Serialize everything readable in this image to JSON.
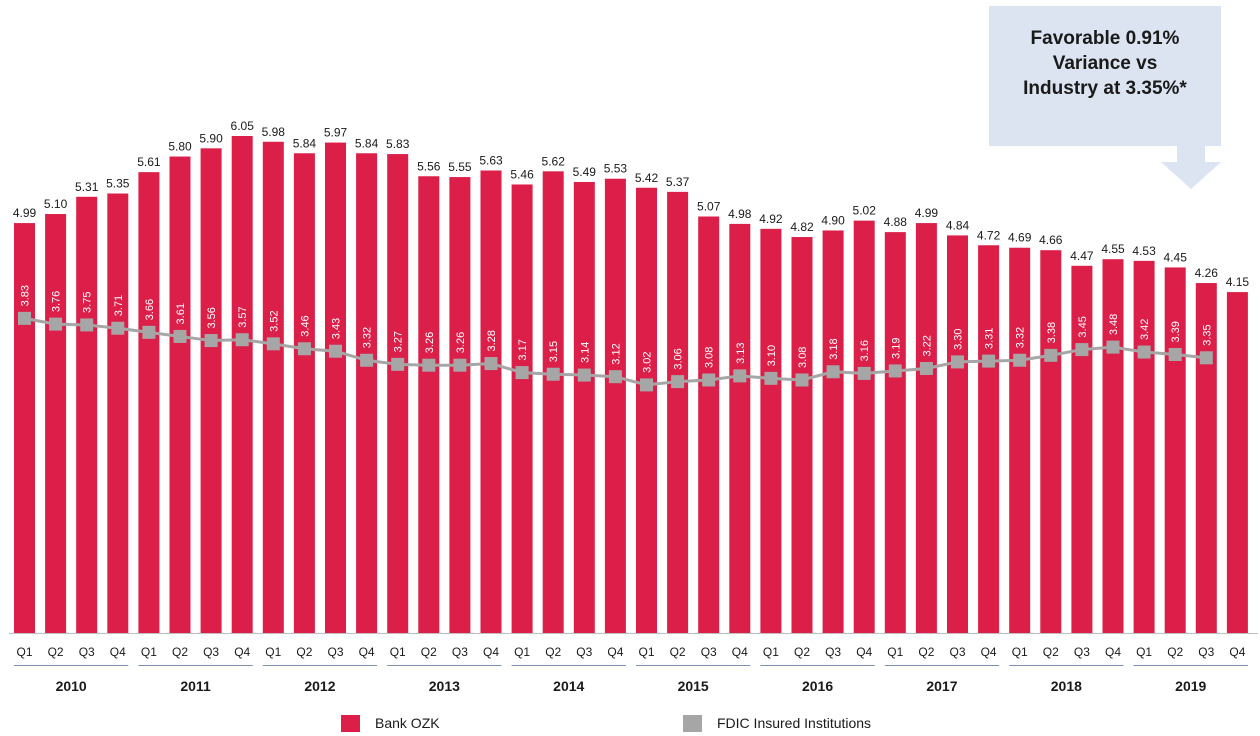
{
  "chart_data": {
    "type": "bar",
    "categories": [
      "Q1",
      "Q2",
      "Q3",
      "Q4",
      "Q1",
      "Q2",
      "Q3",
      "Q4",
      "Q1",
      "Q2",
      "Q3",
      "Q4",
      "Q1",
      "Q2",
      "Q3",
      "Q4",
      "Q1",
      "Q2",
      "Q3",
      "Q4",
      "Q1",
      "Q2",
      "Q3",
      "Q4",
      "Q1",
      "Q2",
      "Q3",
      "Q4",
      "Q1",
      "Q2",
      "Q3",
      "Q4",
      "Q1",
      "Q2",
      "Q3",
      "Q4",
      "Q1",
      "Q2",
      "Q3",
      "Q4"
    ],
    "years": [
      "2010",
      "2011",
      "2012",
      "2013",
      "2014",
      "2015",
      "2016",
      "2017",
      "2018",
      "2019"
    ],
    "series": [
      {
        "name": "Bank OZK",
        "type": "bar",
        "color": "#db1f48",
        "values": [
          4.99,
          5.1,
          5.31,
          5.35,
          5.61,
          5.8,
          5.9,
          6.05,
          5.98,
          5.84,
          5.97,
          5.84,
          5.83,
          5.56,
          5.55,
          5.63,
          5.46,
          5.62,
          5.49,
          5.53,
          5.42,
          5.37,
          5.07,
          4.98,
          4.92,
          4.82,
          4.9,
          5.02,
          4.88,
          4.99,
          4.84,
          4.72,
          4.69,
          4.66,
          4.47,
          4.55,
          4.53,
          4.45,
          4.26,
          4.15
        ],
        "labels": [
          "4.99",
          "5.10",
          "5.31",
          "5.35",
          "5.61",
          "5.80",
          "5.90",
          "6.05",
          "5.98",
          "5.84",
          "5.97",
          "5.84",
          "5.83",
          "5.56",
          "5.55",
          "5.63",
          "5.46",
          "5.62",
          "5.49",
          "5.53",
          "5.42",
          "5.37",
          "5.07",
          "4.98",
          "4.92",
          "4.82",
          "4.90",
          "5.02",
          "4.88",
          "4.99",
          "4.84",
          "4.72",
          "4.69",
          "4.66",
          "4.47",
          "4.55",
          "4.53",
          "4.45",
          "4.26",
          "4.15"
        ]
      },
      {
        "name": "FDIC Insured Institutions",
        "type": "line",
        "color": "#a6a6a6",
        "values": [
          3.83,
          3.76,
          3.75,
          3.71,
          3.66,
          3.61,
          3.56,
          3.57,
          3.52,
          3.46,
          3.43,
          3.32,
          3.27,
          3.26,
          3.26,
          3.28,
          3.17,
          3.15,
          3.14,
          3.12,
          3.02,
          3.06,
          3.08,
          3.13,
          3.1,
          3.08,
          3.18,
          3.16,
          3.19,
          3.22,
          3.3,
          3.31,
          3.32,
          3.38,
          3.45,
          3.48,
          3.42,
          3.39,
          3.35,
          null
        ],
        "labels": [
          "3.83",
          "3.76",
          "3.75",
          "3.71",
          "3.66",
          "3.61",
          "3.56",
          "3.57",
          "3.52",
          "3.46",
          "3.43",
          "3.32",
          "3.27",
          "3.26",
          "3.26",
          "3.28",
          "3.17",
          "3.15",
          "3.14",
          "3.12",
          "3.02",
          "3.06",
          "3.08",
          "3.13",
          "3.10",
          "3.08",
          "3.18",
          "3.16",
          "3.19",
          "3.22",
          "3.30",
          "3.31",
          "3.32",
          "3.38",
          "3.45",
          "3.48",
          "3.42",
          "3.39",
          "3.35",
          ""
        ]
      }
    ],
    "ylim": [
      0,
      6.05
    ],
    "grid": false,
    "legend_position": "bottom",
    "title": "",
    "xlabel": "",
    "ylabel": ""
  },
  "callout": {
    "lines": [
      "Favorable 0.91%",
      "Variance vs",
      "Industry at 3.35%*"
    ],
    "color": "#dbe4f0"
  },
  "legend": {
    "bank_label": "Bank OZK",
    "fdic_label": "FDIC Insured Institutions"
  }
}
